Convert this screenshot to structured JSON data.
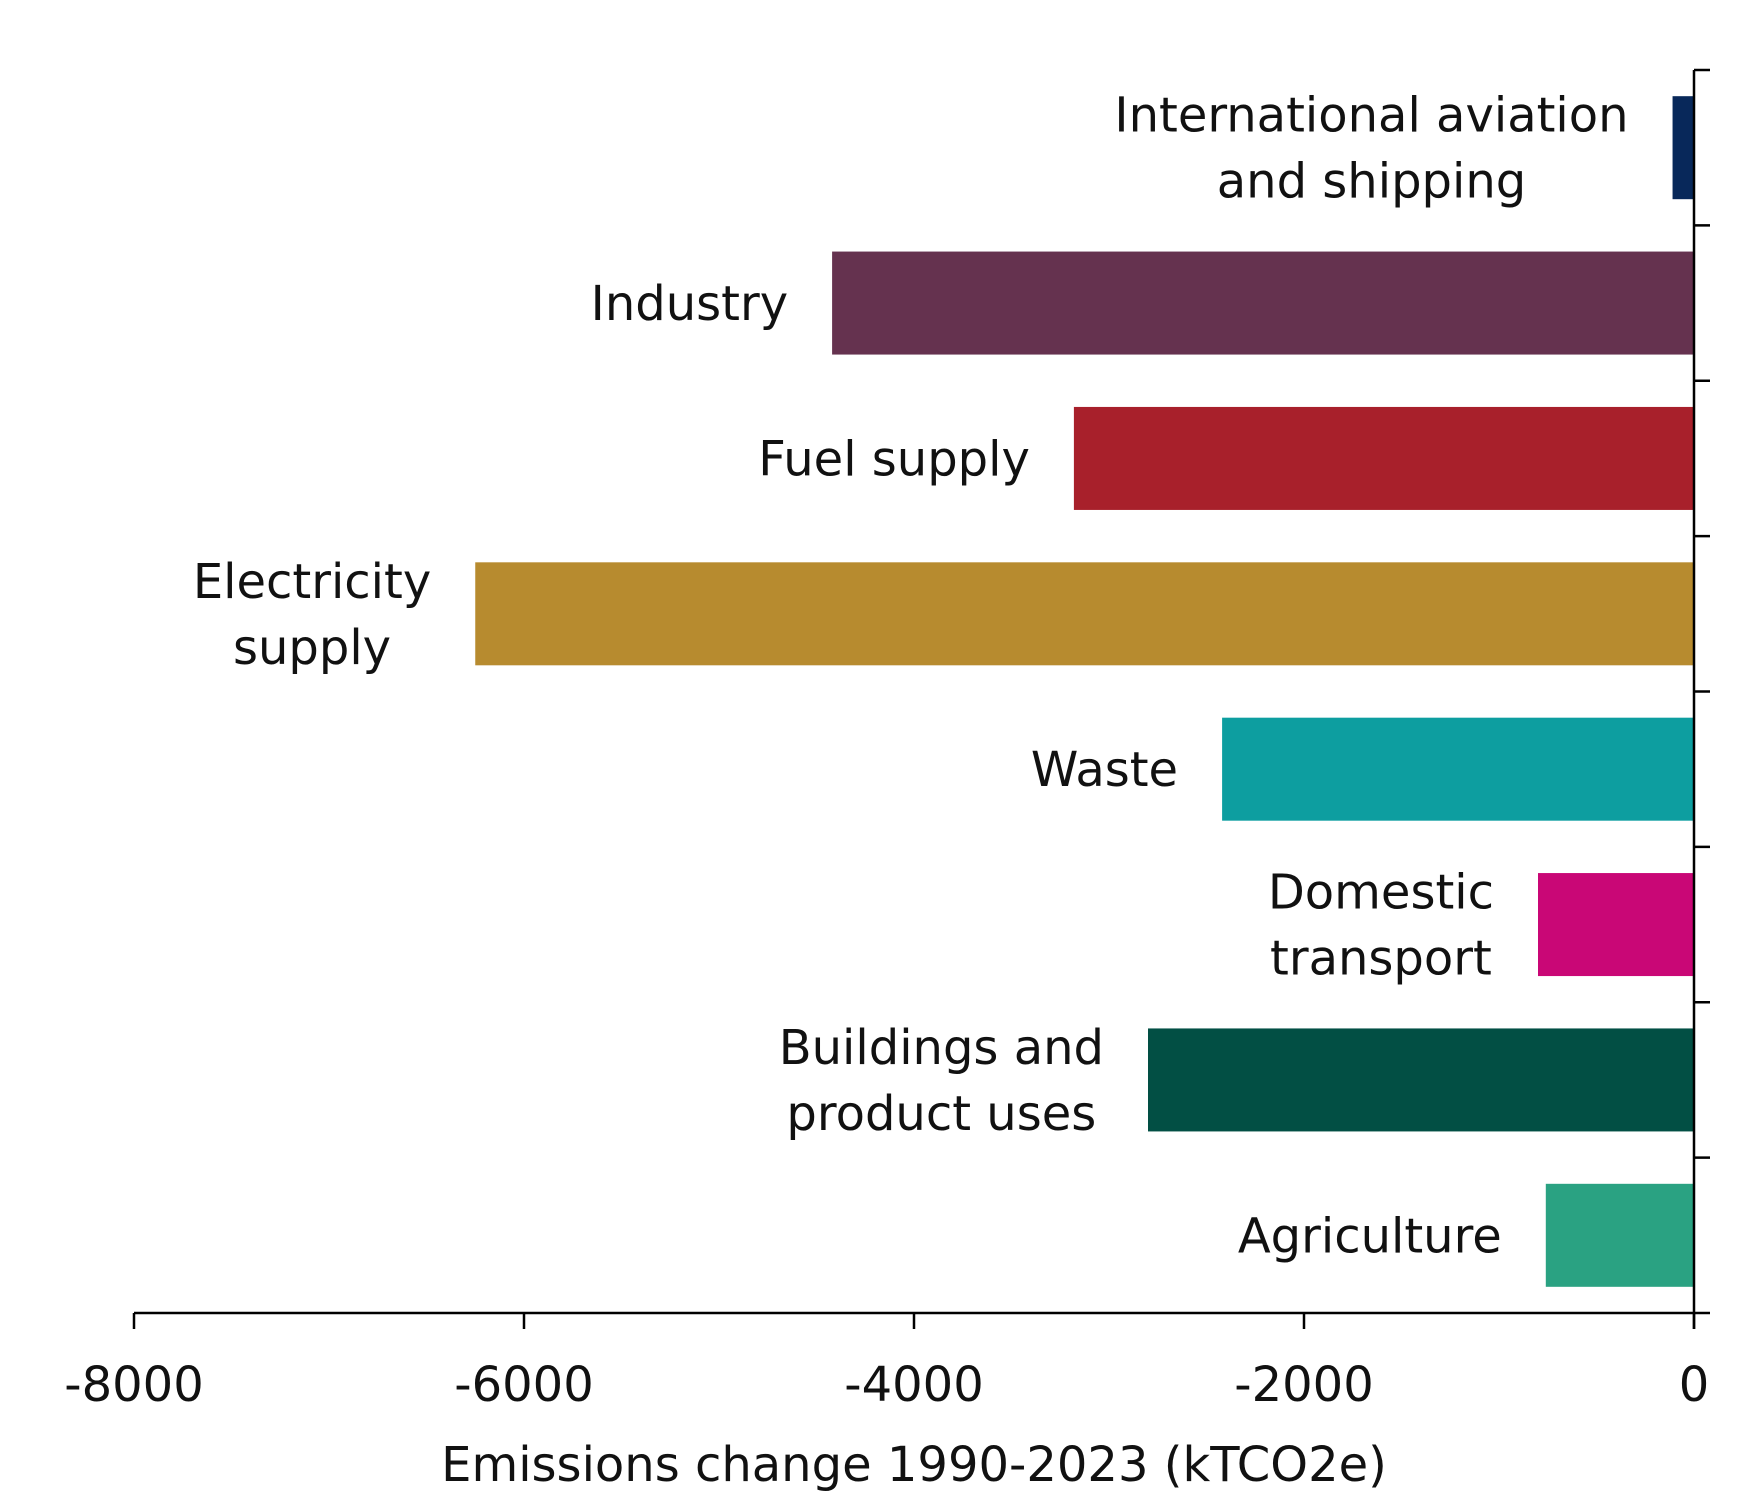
{
  "chart_data": {
    "type": "bar",
    "orientation": "horizontal",
    "categories": [
      [
        "International aviation",
        "and shipping"
      ],
      [
        "Industry"
      ],
      [
        "Fuel supply"
      ],
      [
        "Electricity",
        "supply"
      ],
      [
        "Waste"
      ],
      [
        "Domestic",
        "transport"
      ],
      [
        "Buildings and",
        "product uses"
      ],
      [
        "Agriculture"
      ]
    ],
    "values": [
      -110,
      -4420,
      -3180,
      -6250,
      -2420,
      -800,
      -2800,
      -760
    ],
    "colors": [
      "#08285a",
      "#65324f",
      "#a8202b",
      "#b78b2f",
      "#0d9ea0",
      "#c90776",
      "#024f44",
      "#2aa282"
    ],
    "xlim": [
      -8000,
      0
    ],
    "xticks": [
      -8000,
      -6000,
      -4000,
      -2000,
      0
    ],
    "xlabel": "Emissions change 1990-2023 (kTCO2e)",
    "ylabel": "",
    "title": "",
    "grid": false,
    "legend": "none"
  }
}
